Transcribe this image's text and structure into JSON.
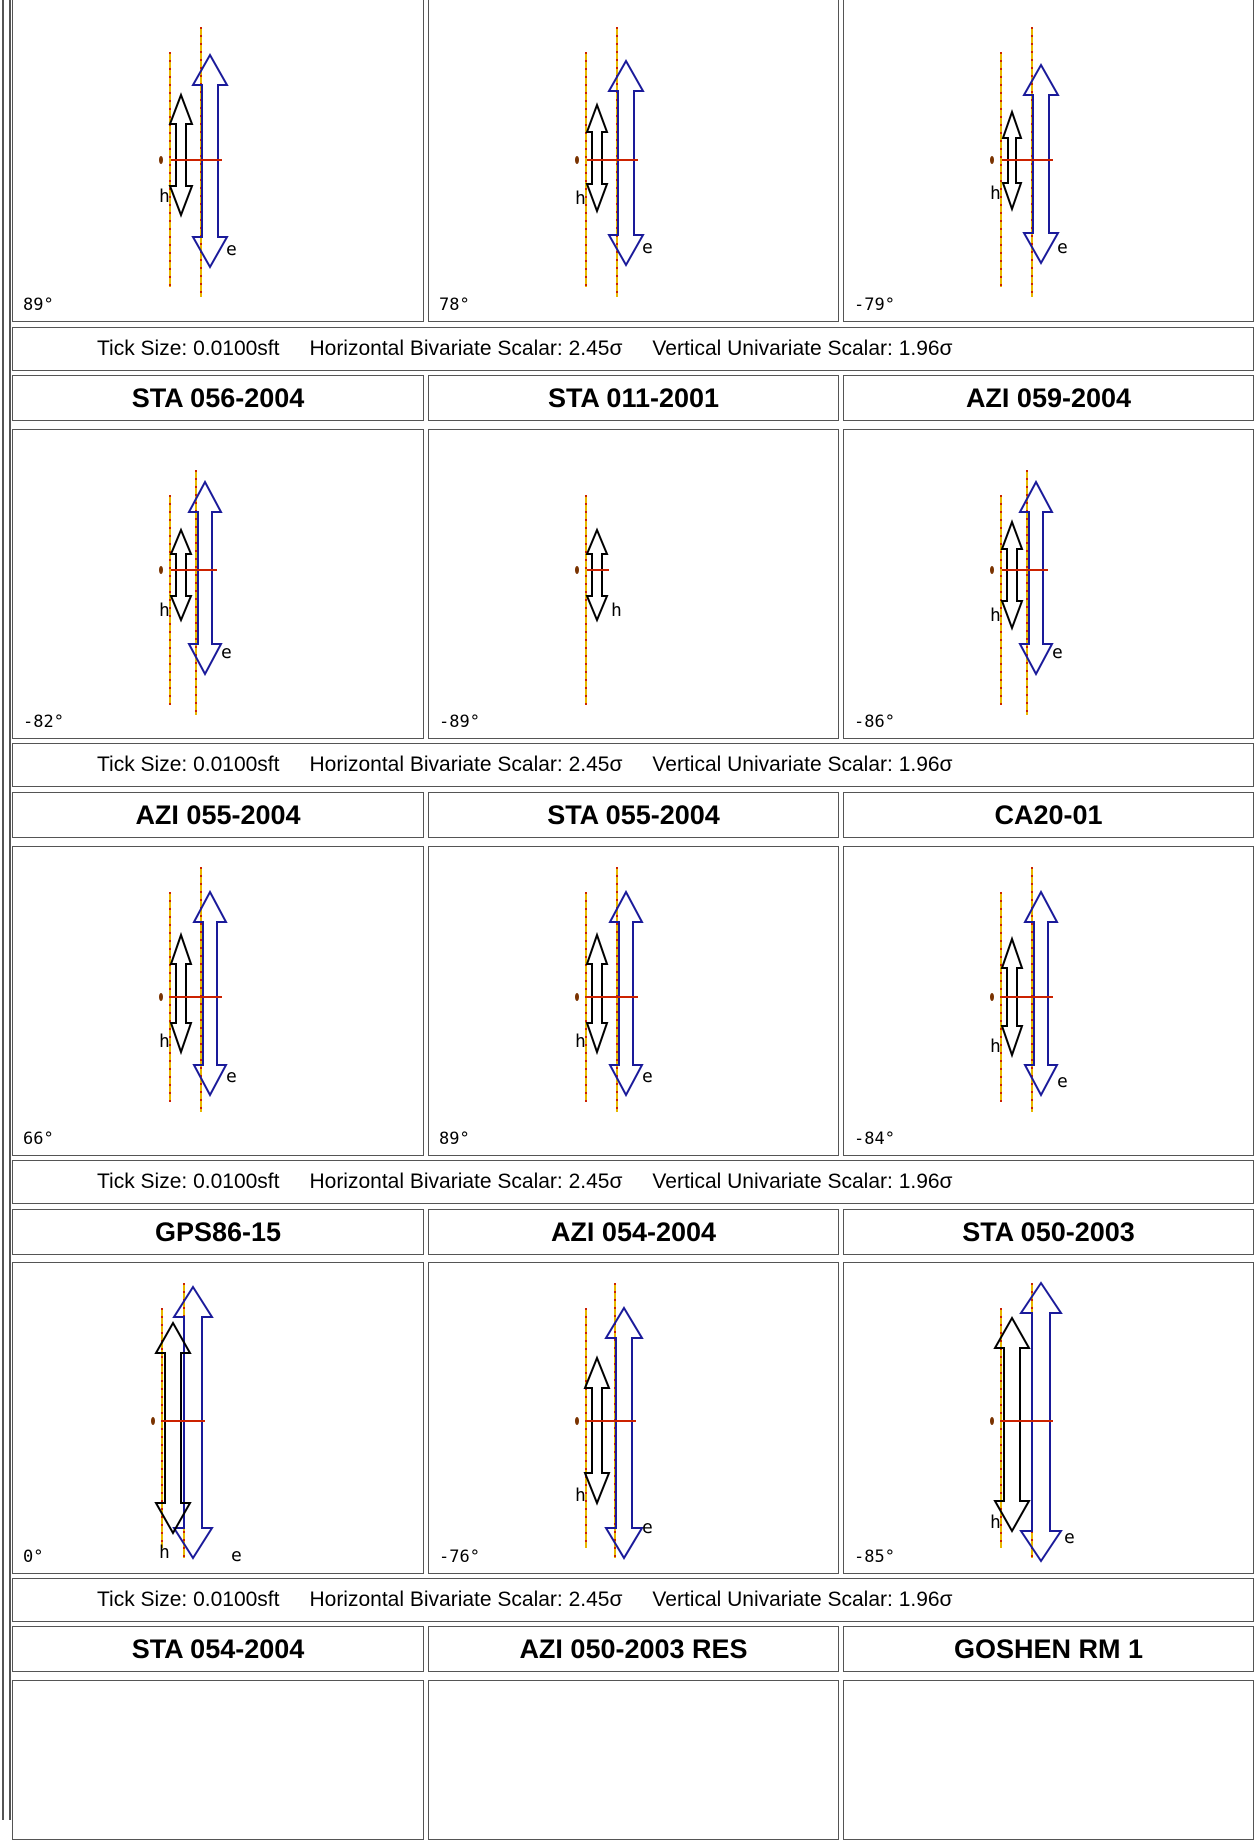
{
  "colors": {
    "h_ellipse_outline": "#000000",
    "e_ellipse_outline": "#1a1a9a",
    "azimuth_axis": "#e8b800",
    "azimuth_ticks": "#cc2200",
    "tick_crossbar": "#cc2200",
    "border": "#555555"
  },
  "info_bar": {
    "tick_size": "Tick Size: 0.0100sft",
    "horizontal": "Horizontal Bivariate Scalar: 2.45σ",
    "vertical": "Vertical Univariate Scalar: 1.96σ"
  },
  "rows": [
    {
      "titles": null,
      "plots": [
        {
          "angle": "89°",
          "h_label": "h",
          "e_label": "e"
        },
        {
          "angle": "78°",
          "h_label": "h",
          "e_label": "e"
        },
        {
          "angle": "-79°",
          "h_label": "h",
          "e_label": "e"
        }
      ]
    },
    {
      "titles": [
        "STA 056-2004",
        "STA 011-2001",
        "AZI 059-2004"
      ],
      "plots": [
        {
          "angle": "-82°",
          "h_label": "h",
          "e_label": "e"
        },
        {
          "angle": "-89°",
          "h_label": "h",
          "e_label": ""
        },
        {
          "angle": "-86°",
          "h_label": "h",
          "e_label": "e"
        }
      ]
    },
    {
      "titles": [
        "AZI 055-2004",
        "STA 055-2004",
        "CA20-01"
      ],
      "plots": [
        {
          "angle": "66°",
          "h_label": "h",
          "e_label": "e"
        },
        {
          "angle": "89°",
          "h_label": "h",
          "e_label": "e"
        },
        {
          "angle": "-84°",
          "h_label": "h",
          "e_label": "e"
        }
      ]
    },
    {
      "titles": [
        "GPS86-15",
        "AZI 054-2004",
        "STA 050-2003"
      ],
      "plots": [
        {
          "angle": "0°",
          "h_label": "h",
          "e_label": "e"
        },
        {
          "angle": "-76°",
          "h_label": "h",
          "e_label": "e"
        },
        {
          "angle": "-85°",
          "h_label": "h",
          "e_label": "e"
        }
      ]
    },
    {
      "titles": [
        "STA 054-2004",
        "AZI 050-2003 RES",
        "GOSHEN RM 1"
      ],
      "plots": []
    }
  ]
}
